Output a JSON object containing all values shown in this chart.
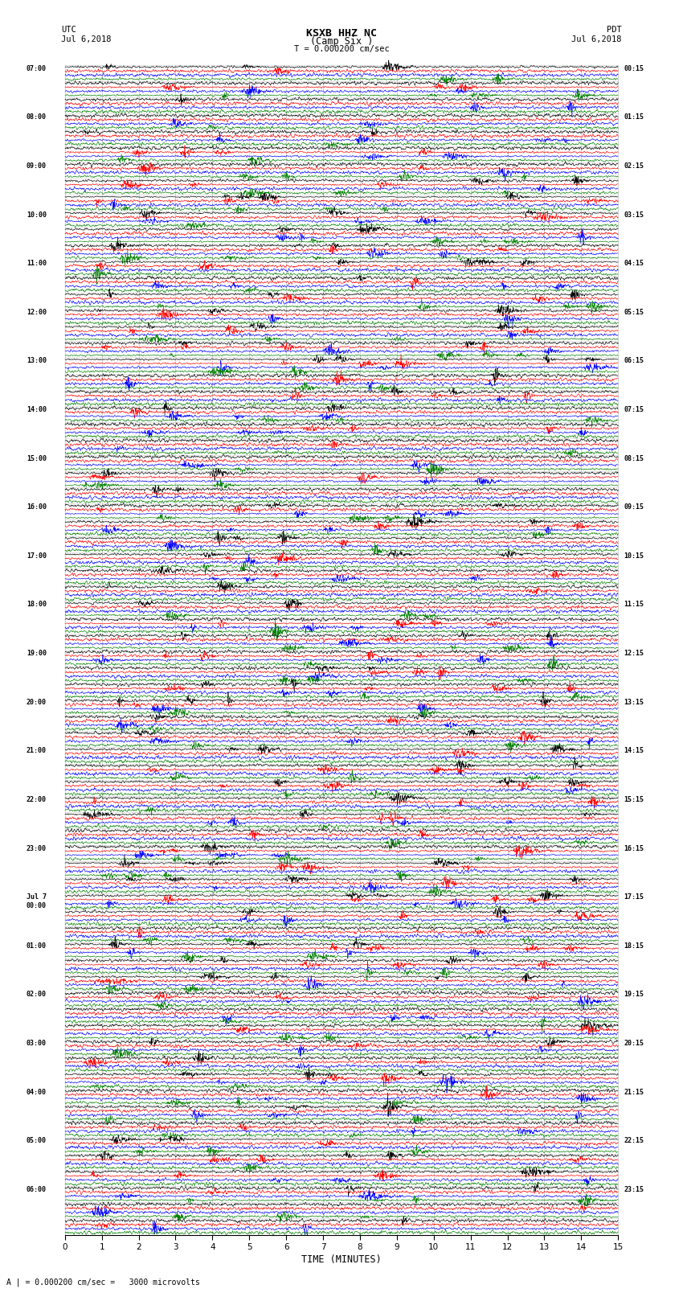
{
  "title_line1": "KSXB HHZ NC",
  "title_line2": "(Camp Six )",
  "title_line3": "T = 0.000200 cm/sec",
  "left_header_line1": "UTC",
  "left_header_line2": "Jul 6,2018",
  "right_header_line1": "PDT",
  "right_header_line2": "Jul 6,2018",
  "bottom_note": "A | = 0.000200 cm/sec =   3000 microvolts",
  "xlabel": "TIME (MINUTES)",
  "xlim": [
    0,
    15
  ],
  "xticks": [
    0,
    1,
    2,
    3,
    4,
    5,
    6,
    7,
    8,
    9,
    10,
    11,
    12,
    13,
    14,
    15
  ],
  "left_times": [
    "07:00",
    "",
    "",
    "08:00",
    "",
    "",
    "09:00",
    "",
    "",
    "10:00",
    "",
    "",
    "11:00",
    "",
    "",
    "12:00",
    "",
    "",
    "13:00",
    "",
    "",
    "14:00",
    "",
    "",
    "15:00",
    "",
    "",
    "16:00",
    "",
    "",
    "17:00",
    "",
    "",
    "18:00",
    "",
    "",
    "19:00",
    "",
    "",
    "20:00",
    "",
    "",
    "21:00",
    "",
    "",
    "22:00",
    "",
    "",
    "23:00",
    "",
    "",
    "Jul 7\n00:00",
    "",
    "",
    "01:00",
    "",
    "",
    "02:00",
    "",
    "",
    "03:00",
    "",
    "",
    "04:00",
    "",
    "",
    "05:00",
    "",
    "",
    "06:00",
    "",
    ""
  ],
  "right_times": [
    "00:15",
    "",
    "",
    "01:15",
    "",
    "",
    "02:15",
    "",
    "",
    "03:15",
    "",
    "",
    "04:15",
    "",
    "",
    "05:15",
    "",
    "",
    "06:15",
    "",
    "",
    "07:15",
    "",
    "",
    "08:15",
    "",
    "",
    "09:15",
    "",
    "",
    "10:15",
    "",
    "",
    "11:15",
    "",
    "",
    "12:15",
    "",
    "",
    "13:15",
    "",
    "",
    "14:15",
    "",
    "",
    "15:15",
    "",
    "",
    "16:15",
    "",
    "",
    "17:15",
    "",
    "",
    "18:15",
    "",
    "",
    "19:15",
    "",
    "",
    "20:15",
    "",
    "",
    "21:15",
    "",
    "",
    "22:15",
    "",
    "",
    "23:15",
    "",
    ""
  ],
  "n_rows": 72,
  "traces_per_row": 4,
  "trace_colors": [
    "black",
    "red",
    "blue",
    "green"
  ],
  "bg_color": "white",
  "grid_color": "#aaaaaa",
  "fig_width": 8.5,
  "fig_height": 16.13,
  "dpi": 100
}
